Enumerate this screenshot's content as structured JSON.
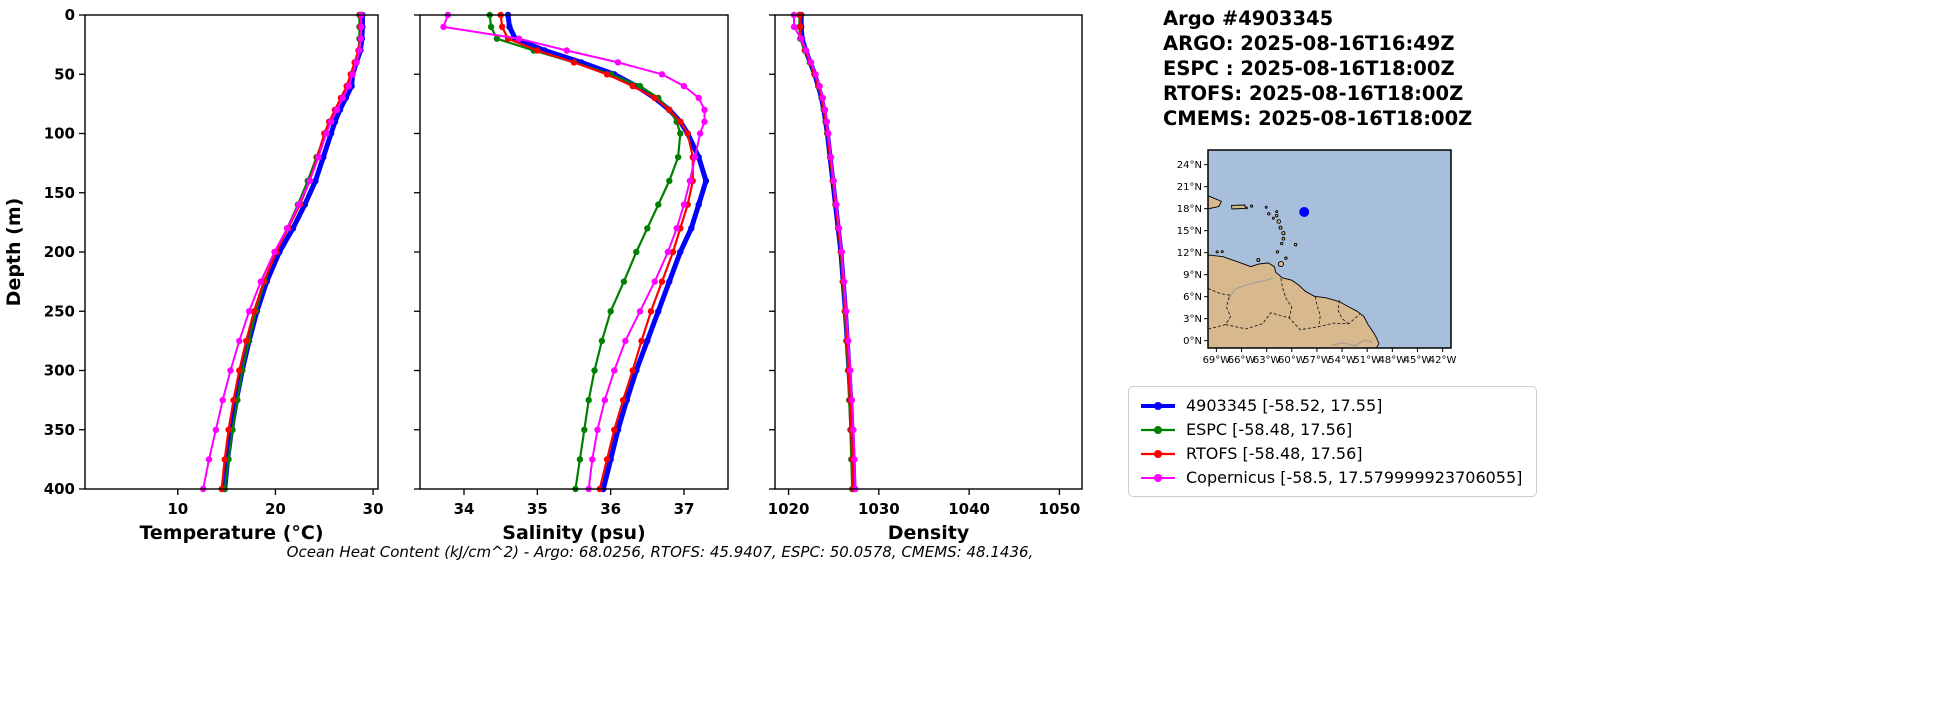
{
  "header": {
    "title": "Argo #4903345",
    "lines": [
      "ARGO: 2025-08-16T16:49Z",
      "ESPC : 2025-08-16T18:00Z",
      "RTOFS: 2025-08-16T18:00Z",
      "CMEMS: 2025-08-16T18:00Z"
    ]
  },
  "caption": "Ocean Heat Content (kJ/cm^2) - Argo: 68.0256,  RTOFS: 45.9407,  ESPC: 50.0578,  CMEMS: 48.1436,",
  "legend": {
    "items": [
      {
        "label": "4903345 [-58.52, 17.55]",
        "color": "#0000ff"
      },
      {
        "label": "ESPC [-58.48, 17.56]",
        "color": "#008000"
      },
      {
        "label": "RTOFS [-58.48, 17.56]",
        "color": "#ff0000"
      },
      {
        "label": "Copernicus [-58.5, 17.579999923706055]",
        "color": "#ff00ff"
      }
    ]
  },
  "chart_data": {
    "type": "line",
    "title": "",
    "depth_label": "Depth (m)",
    "ylim": [
      0,
      400
    ],
    "yticks": [
      0,
      50,
      100,
      150,
      200,
      250,
      300,
      350,
      400
    ],
    "depths": [
      0,
      10,
      20,
      30,
      40,
      50,
      60,
      70,
      80,
      90,
      100,
      120,
      140,
      160,
      180,
      200,
      225,
      250,
      275,
      300,
      325,
      350,
      375,
      400
    ],
    "series_meta": [
      {
        "id": "argo",
        "name": "4903345",
        "color": "#0000ff",
        "linewidth": 5,
        "markersize": 3.2
      },
      {
        "id": "espc",
        "name": "ESPC",
        "color": "#008000",
        "linewidth": 2.2,
        "markersize": 3.2
      },
      {
        "id": "rtofs",
        "name": "RTOFS",
        "color": "#ff0000",
        "linewidth": 2.2,
        "markersize": 3.2
      },
      {
        "id": "copernicus",
        "name": "Copernicus",
        "color": "#ff00ff",
        "linewidth": 2,
        "markersize": 3.2
      }
    ],
    "panels": [
      {
        "key": "temperature",
        "xlabel": "Temperature (°C)",
        "xlim": [
          0.5,
          30.5
        ],
        "xticks": [
          10,
          20,
          30
        ],
        "series": {
          "argo": [
            28.9,
            28.9,
            28.85,
            28.7,
            28.3,
            27.9,
            27.8,
            27.2,
            26.6,
            26.1,
            25.7,
            24.9,
            24.1,
            23.0,
            21.8,
            20.4,
            19.1,
            18.1,
            17.3,
            16.6,
            16.0,
            15.5,
            15.1,
            14.8
          ],
          "espc": [
            28.6,
            28.6,
            28.6,
            28.5,
            28.2,
            27.8,
            27.4,
            26.8,
            26.2,
            25.6,
            25.1,
            24.2,
            23.3,
            22.3,
            21.2,
            20.0,
            18.9,
            18.0,
            17.3,
            16.6,
            16.1,
            15.6,
            15.2,
            14.8
          ],
          "rtofs": [
            28.7,
            28.7,
            28.7,
            28.5,
            28.1,
            27.7,
            27.3,
            26.7,
            26.1,
            25.5,
            25.0,
            24.3,
            23.5,
            22.5,
            21.3,
            20.1,
            18.8,
            17.8,
            17.0,
            16.3,
            15.7,
            15.2,
            14.8,
            14.5
          ],
          "copernicus": [
            28.8,
            28.8,
            28.75,
            28.6,
            28.3,
            27.9,
            27.5,
            26.9,
            26.3,
            25.7,
            25.2,
            24.4,
            23.5,
            22.4,
            21.2,
            19.9,
            18.5,
            17.3,
            16.3,
            15.4,
            14.6,
            13.9,
            13.2,
            12.6
          ]
        }
      },
      {
        "key": "salinity",
        "xlabel": "Salinity (psu)",
        "xlim": [
          33.4,
          37.6
        ],
        "xticks": [
          34,
          35,
          36,
          37
        ],
        "series": {
          "argo": [
            34.6,
            34.62,
            34.7,
            35.1,
            35.6,
            36.05,
            36.35,
            36.6,
            36.8,
            36.95,
            37.05,
            37.2,
            37.3,
            37.2,
            37.1,
            36.95,
            36.8,
            36.65,
            36.5,
            36.35,
            36.22,
            36.1,
            36.0,
            35.9
          ],
          "espc": [
            34.35,
            34.37,
            34.45,
            34.95,
            35.5,
            36.0,
            36.4,
            36.65,
            36.8,
            36.9,
            36.95,
            36.92,
            36.8,
            36.65,
            36.5,
            36.35,
            36.18,
            36.0,
            35.88,
            35.78,
            35.7,
            35.64,
            35.58,
            35.52
          ],
          "rtofs": [
            34.5,
            34.52,
            34.6,
            35.0,
            35.5,
            35.95,
            36.3,
            36.6,
            36.8,
            36.95,
            37.05,
            37.12,
            37.12,
            37.05,
            36.95,
            36.85,
            36.7,
            36.55,
            36.42,
            36.3,
            36.17,
            36.05,
            35.95,
            35.85
          ],
          "copernicus": [
            33.78,
            33.72,
            34.75,
            35.4,
            36.1,
            36.7,
            37.0,
            37.2,
            37.28,
            37.28,
            37.22,
            37.15,
            37.08,
            37.0,
            36.9,
            36.78,
            36.6,
            36.4,
            36.2,
            36.05,
            35.92,
            35.82,
            35.75,
            35.7
          ]
        }
      },
      {
        "key": "density",
        "xlabel": "Density",
        "xlim": [
          1018.5,
          1052.5
        ],
        "xticks": [
          1020,
          1030,
          1040,
          1050
        ],
        "series": {
          "argo": [
            1021.4,
            1021.4,
            1021.5,
            1021.9,
            1022.4,
            1022.9,
            1023.3,
            1023.65,
            1023.9,
            1024.1,
            1024.3,
            1024.6,
            1024.9,
            1025.2,
            1025.5,
            1025.8,
            1026.05,
            1026.3,
            1026.5,
            1026.7,
            1026.88,
            1027.02,
            1027.15,
            1027.25
          ],
          "espc": [
            1021.2,
            1021.2,
            1021.3,
            1021.8,
            1022.35,
            1022.85,
            1023.3,
            1023.65,
            1023.9,
            1024.1,
            1024.28,
            1024.6,
            1024.9,
            1025.2,
            1025.5,
            1025.78,
            1026.0,
            1026.22,
            1026.4,
            1026.58,
            1026.72,
            1026.85,
            1026.95,
            1027.05
          ],
          "rtofs": [
            1021.3,
            1021.3,
            1021.4,
            1021.85,
            1022.4,
            1022.9,
            1023.35,
            1023.7,
            1023.95,
            1024.15,
            1024.32,
            1024.62,
            1024.92,
            1025.22,
            1025.52,
            1025.82,
            1026.05,
            1026.28,
            1026.46,
            1026.64,
            1026.8,
            1026.94,
            1027.06,
            1027.16
          ],
          "copernicus": [
            1020.6,
            1020.6,
            1021.4,
            1021.95,
            1022.5,
            1023.0,
            1023.45,
            1023.8,
            1024.05,
            1024.25,
            1024.4,
            1024.7,
            1025.0,
            1025.3,
            1025.6,
            1025.9,
            1026.15,
            1026.4,
            1026.62,
            1026.84,
            1027.02,
            1027.18,
            1027.3,
            1027.4
          ]
        }
      }
    ]
  },
  "map": {
    "extent": {
      "lon_min": -70,
      "lon_max": -41,
      "lat_min": -1,
      "lat_max": 26
    },
    "lat_ticks": [
      "24°N",
      "21°N",
      "18°N",
      "15°N",
      "12°N",
      "9°N",
      "6°N",
      "3°N",
      "0°N"
    ],
    "lat_tick_values": [
      24,
      21,
      18,
      15,
      12,
      9,
      6,
      3,
      0
    ],
    "lon_ticks": [
      "69°W",
      "66°W",
      "63°W",
      "60°W",
      "57°W",
      "54°W",
      "51°W",
      "48°W",
      "45°W",
      "42°W"
    ],
    "lon_tick_values": [
      -69,
      -66,
      -63,
      -60,
      -57,
      -54,
      -51,
      -48,
      -45,
      -42
    ],
    "ocean_color": "#a8bfdc",
    "land_color": "#d8b98e",
    "marker": {
      "lon": -58.52,
      "lat": 17.55,
      "color": "#0000ff"
    },
    "features": {
      "land": [
        [
          [
            -70,
            11.7
          ],
          [
            -68.2,
            11.45
          ],
          [
            -66.2,
            10.65
          ],
          [
            -64.9,
            10.1
          ],
          [
            -63.9,
            10.45
          ],
          [
            -62.8,
            10.6
          ],
          [
            -62.1,
            10.1
          ],
          [
            -61.9,
            9.3
          ],
          [
            -61.1,
            8.55
          ],
          [
            -60.0,
            8.25
          ],
          [
            -59.2,
            7.6
          ],
          [
            -58.4,
            6.75
          ],
          [
            -57.3,
            6.05
          ],
          [
            -55.9,
            5.85
          ],
          [
            -54.4,
            5.35
          ],
          [
            -53.2,
            4.6
          ],
          [
            -52.2,
            4.0
          ],
          [
            -51.4,
            3.3
          ],
          [
            -50.9,
            2.2
          ],
          [
            -50.3,
            1.2
          ],
          [
            -49.9,
            0.4
          ],
          [
            -49.6,
            -0.4
          ],
          [
            -50.0,
            -1.2
          ],
          [
            -70,
            -1.2
          ]
        ],
        [
          [
            -67.2,
            18.45
          ],
          [
            -65.6,
            18.5
          ],
          [
            -65.55,
            18.05
          ],
          [
            -67.15,
            17.95
          ]
        ],
        [
          [
            -70.3,
            19.9
          ],
          [
            -68.4,
            19.0
          ],
          [
            -68.7,
            18.3
          ],
          [
            -70.3,
            17.9
          ]
        ]
      ],
      "islands": [
        [
          -61.3,
          10.45,
          2.6
        ],
        [
          -60.7,
          11.25,
          1.2
        ],
        [
          -61.7,
          12.1,
          1.2
        ],
        [
          -61.2,
          13.25,
          1.2
        ],
        [
          -59.55,
          13.1,
          1.3
        ],
        [
          -61.0,
          13.9,
          1.4
        ],
        [
          -61.0,
          14.65,
          1.6
        ],
        [
          -61.35,
          15.4,
          1.5
        ],
        [
          -61.55,
          16.25,
          1.8
        ],
        [
          -61.8,
          17.05,
          1.3
        ],
        [
          -61.8,
          17.6,
          1.0
        ],
        [
          -62.75,
          17.3,
          1.2
        ],
        [
          -62.2,
          16.7,
          1.0
        ],
        [
          -63.05,
          18.2,
          1.0
        ],
        [
          -64.8,
          18.35,
          1.1
        ],
        [
          -65.4,
          18.1,
          0.9
        ],
        [
          -64.0,
          11.0,
          1.5
        ],
        [
          -68.9,
          12.1,
          1.1
        ],
        [
          -68.3,
          12.15,
          1.0
        ]
      ],
      "borders": [
        [
          [
            -70,
            7.1
          ],
          [
            -68.5,
            6.4
          ],
          [
            -67.4,
            6.2
          ],
          [
            -67.8,
            4.6
          ],
          [
            -67.3,
            3.3
          ],
          [
            -67.9,
            2.2
          ],
          [
            -69.9,
            1.6
          ]
        ],
        [
          [
            -61.3,
            8.5
          ],
          [
            -61.1,
            7.2
          ],
          [
            -60.7,
            5.8
          ],
          [
            -60.0,
            4.6
          ],
          [
            -60.3,
            3.1
          ]
        ],
        [
          [
            -67.9,
            2.2
          ],
          [
            -65.5,
            1.6
          ],
          [
            -63.5,
            2.3
          ],
          [
            -62.5,
            3.8
          ],
          [
            -60.3,
            3.1
          ],
          [
            -59.0,
            1.5
          ],
          [
            -56.8,
            1.9
          ],
          [
            -55.0,
            2.4
          ],
          [
            -53.2,
            2.3
          ],
          [
            -51.8,
            3.7
          ]
        ],
        [
          [
            -57.2,
            6.0
          ],
          [
            -57.0,
            4.9
          ],
          [
            -56.6,
            3.4
          ],
          [
            -56.8,
            1.9
          ]
        ],
        [
          [
            -54.3,
            5.5
          ],
          [
            -54.5,
            4.2
          ],
          [
            -54.0,
            3.0
          ],
          [
            -53.2,
            2.3
          ]
        ]
      ],
      "rivers": [
        [
          [
            -67.6,
            5.6
          ],
          [
            -66.8,
            7.0
          ],
          [
            -65.4,
            7.6
          ],
          [
            -63.6,
            8.1
          ],
          [
            -62.3,
            8.5
          ]
        ],
        [
          [
            -55.2,
            -0.6
          ],
          [
            -53.8,
            -0.3
          ],
          [
            -52.4,
            -0.7
          ],
          [
            -51.3,
            0.1
          ],
          [
            -50.4,
            -0.2
          ]
        ]
      ]
    }
  }
}
